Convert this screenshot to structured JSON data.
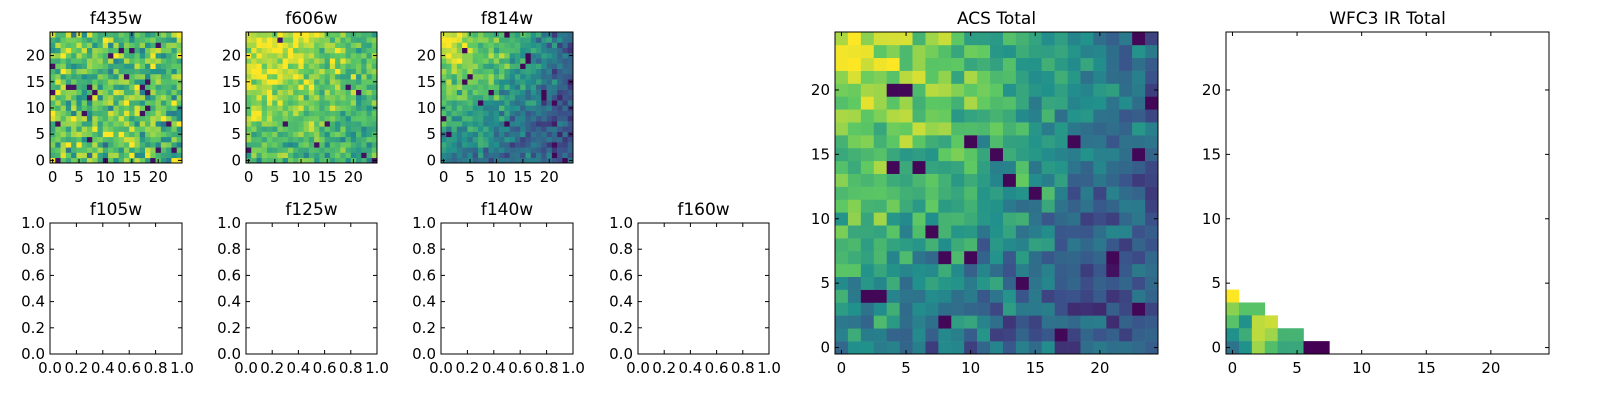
{
  "colormap": {
    "name": "viridis",
    "stops": [
      "#440154",
      "#3b528b",
      "#21918c",
      "#5ec962",
      "#fde725"
    ]
  },
  "chart_data": [
    {
      "type": "heatmap",
      "title": "f435w",
      "grid": "25x25",
      "xlim": [
        -0.5,
        24.5
      ],
      "ylim": [
        -0.5,
        24.5
      ],
      "xticks": [
        "0",
        "5",
        "10",
        "15",
        "20"
      ],
      "yticks": [
        "0",
        "5",
        "10",
        "15",
        "20"
      ],
      "pattern": "noise",
      "mean_level": 0.72
    },
    {
      "type": "heatmap",
      "title": "f606w",
      "grid": "25x25",
      "xlim": [
        -0.5,
        24.5
      ],
      "ylim": [
        -0.5,
        24.5
      ],
      "xticks": [
        "0",
        "5",
        "10",
        "15",
        "20"
      ],
      "yticks": [
        "0",
        "5",
        "10",
        "15",
        "20"
      ],
      "pattern": "noise-bright-top-left",
      "mean_level": 0.65
    },
    {
      "type": "heatmap",
      "title": "f814w",
      "grid": "25x25",
      "xlim": [
        -0.5,
        24.5
      ],
      "ylim": [
        -0.5,
        24.5
      ],
      "xticks": [
        "0",
        "5",
        "10",
        "15",
        "20"
      ],
      "yticks": [
        "0",
        "5",
        "10",
        "15",
        "20"
      ],
      "pattern": "gradient-bright-top-left",
      "mean_level": 0.5
    },
    {
      "type": "heatmap",
      "title": "f105w",
      "empty": true,
      "xlim": [
        0,
        1
      ],
      "ylim": [
        0,
        1
      ],
      "xticks": [
        "0.0",
        "0.2",
        "0.4",
        "0.6",
        "0.8",
        "1.0"
      ],
      "yticks": [
        "0.0",
        "0.2",
        "0.4",
        "0.6",
        "0.8",
        "1.0"
      ]
    },
    {
      "type": "heatmap",
      "title": "f125w",
      "empty": true,
      "xlim": [
        0,
        1
      ],
      "ylim": [
        0,
        1
      ],
      "xticks": [
        "0.0",
        "0.2",
        "0.4",
        "0.6",
        "0.8",
        "1.0"
      ],
      "yticks": [
        "0.0",
        "0.2",
        "0.4",
        "0.6",
        "0.8",
        "1.0"
      ]
    },
    {
      "type": "heatmap",
      "title": "f140w",
      "empty": true,
      "xlim": [
        0,
        1
      ],
      "ylim": [
        0,
        1
      ],
      "xticks": [
        "0.0",
        "0.2",
        "0.4",
        "0.6",
        "0.8",
        "1.0"
      ],
      "yticks": [
        "0.0",
        "0.2",
        "0.4",
        "0.6",
        "0.8",
        "1.0"
      ]
    },
    {
      "type": "heatmap",
      "title": "f160w",
      "empty": true,
      "xlim": [
        0,
        1
      ],
      "ylim": [
        0,
        1
      ],
      "xticks": [
        "0.0",
        "0.2",
        "0.4",
        "0.6",
        "0.8",
        "1.0"
      ],
      "yticks": [
        "0.0",
        "0.2",
        "0.4",
        "0.6",
        "0.8",
        "1.0"
      ]
    },
    {
      "type": "heatmap",
      "title": "ACS Total",
      "grid": "25x25",
      "xlim": [
        -0.5,
        24.5
      ],
      "ylim": [
        -0.5,
        24.5
      ],
      "xticks": [
        "0",
        "5",
        "10",
        "15",
        "20"
      ],
      "yticks": [
        "0",
        "5",
        "10",
        "15",
        "20"
      ],
      "pattern": "gradient-bright-top-left",
      "mean_level": 0.5
    },
    {
      "type": "heatmap",
      "title": "WFC3 IR Total",
      "xlim": [
        -0.5,
        24.5
      ],
      "ylim": [
        -0.5,
        24.5
      ],
      "xticks": [
        "0",
        "5",
        "10",
        "15",
        "20"
      ],
      "yticks": [
        "0",
        "5",
        "10",
        "15",
        "20"
      ],
      "cells": [
        {
          "x": 0,
          "y": 4,
          "v": 1.0
        },
        {
          "x": 0,
          "y": 3,
          "v": 0.82
        },
        {
          "x": 1,
          "y": 3,
          "v": 0.72
        },
        {
          "x": 2,
          "y": 3,
          "v": 0.72
        },
        {
          "x": 0,
          "y": 2,
          "v": 0.72
        },
        {
          "x": 1,
          "y": 2,
          "v": 0.5
        },
        {
          "x": 2,
          "y": 2,
          "v": 0.9
        },
        {
          "x": 3,
          "y": 2,
          "v": 0.92
        },
        {
          "x": 0,
          "y": 1,
          "v": 0.5
        },
        {
          "x": 1,
          "y": 1,
          "v": 0.62
        },
        {
          "x": 2,
          "y": 1,
          "v": 0.9
        },
        {
          "x": 3,
          "y": 1,
          "v": 0.85
        },
        {
          "x": 4,
          "y": 1,
          "v": 0.65
        },
        {
          "x": 5,
          "y": 1,
          "v": 0.65
        },
        {
          "x": 0,
          "y": 0,
          "v": 0.38
        },
        {
          "x": 1,
          "y": 0,
          "v": 0.5
        },
        {
          "x": 2,
          "y": 0,
          "v": 0.85
        },
        {
          "x": 3,
          "y": 0,
          "v": 0.7
        },
        {
          "x": 4,
          "y": 0,
          "v": 0.6
        },
        {
          "x": 5,
          "y": 0,
          "v": 0.6
        },
        {
          "x": 6,
          "y": 0,
          "v": 0.0
        },
        {
          "x": 7,
          "y": 0,
          "v": 0.0
        }
      ]
    }
  ]
}
